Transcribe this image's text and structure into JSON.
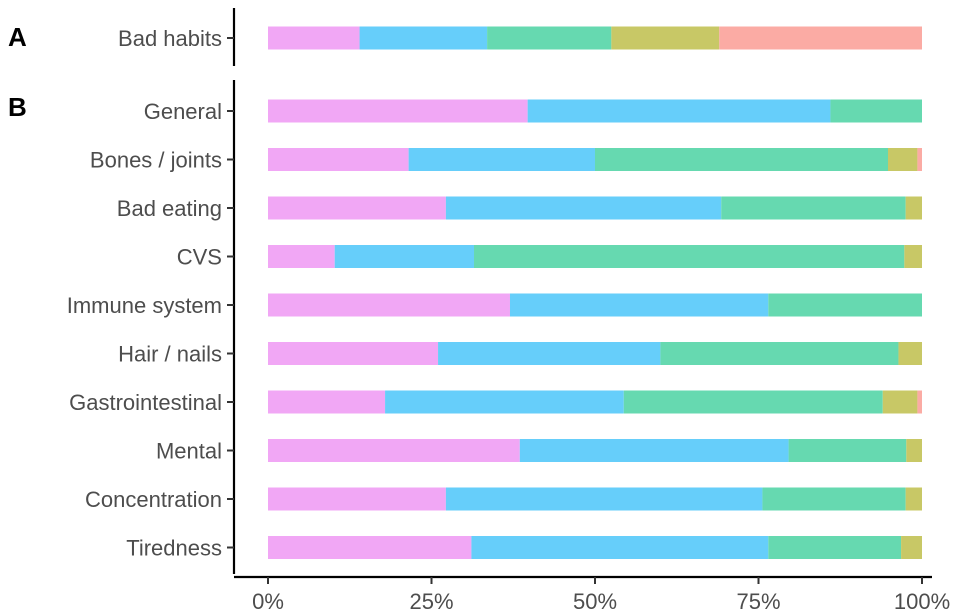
{
  "chart_data": [
    {
      "panel": "A",
      "type": "bar",
      "orientation": "horizontal",
      "stacked": true,
      "normalized": true,
      "categories": [
        "Bad habits"
      ],
      "series": [
        {
          "values": [
            14
          ],
          "color": "#F1A7F5"
        },
        {
          "values": [
            19.5
          ],
          "color": "#66CEFA"
        },
        {
          "values": [
            19
          ],
          "color": "#66D9B0"
        },
        {
          "values": [
            16.5
          ],
          "color": "#C8C866"
        },
        {
          "values": [
            31
          ],
          "color": "#FBABA4"
        }
      ],
      "xlim": [
        0,
        100
      ],
      "x_ticks": [
        "0%",
        "25%",
        "50%",
        "75%",
        "100%"
      ],
      "grid": false,
      "legend": "none"
    },
    {
      "panel": "B",
      "type": "bar",
      "orientation": "horizontal",
      "stacked": true,
      "normalized": true,
      "categories": [
        "General",
        "Bones / joints",
        "Bad eating",
        "CVS",
        "Immune system",
        "Hair / nails",
        "Gastrointestinal",
        "Mental",
        "Concentration",
        "Tiredness"
      ],
      "series": [
        {
          "values": [
            39.7,
            21.5,
            27.2,
            10.2,
            37,
            26,
            17.9,
            38.5,
            27.2,
            31.1
          ],
          "color": "#F1A7F5"
        },
        {
          "values": [
            46.3,
            28.5,
            42.1,
            21.3,
            39.5,
            34,
            36.5,
            41.1,
            48.4,
            45.4
          ],
          "color": "#66CEFA"
        },
        {
          "values": [
            14,
            44.8,
            28.2,
            65.8,
            23.5,
            36.4,
            39.6,
            18,
            21.9,
            20.3
          ],
          "color": "#66D9B0"
        },
        {
          "values": [
            0,
            4.5,
            2.5,
            2.7,
            0,
            3.6,
            5.3,
            2.4,
            2.5,
            3.2
          ],
          "color": "#C8C866"
        },
        {
          "values": [
            0,
            0.7,
            0,
            0,
            0,
            0,
            0.7,
            0,
            0,
            0
          ],
          "color": "#FBABA4"
        }
      ],
      "xlim": [
        0,
        100
      ],
      "x_ticks": [
        "0%",
        "25%",
        "50%",
        "75%",
        "100%"
      ],
      "grid": false,
      "legend": "none"
    }
  ]
}
